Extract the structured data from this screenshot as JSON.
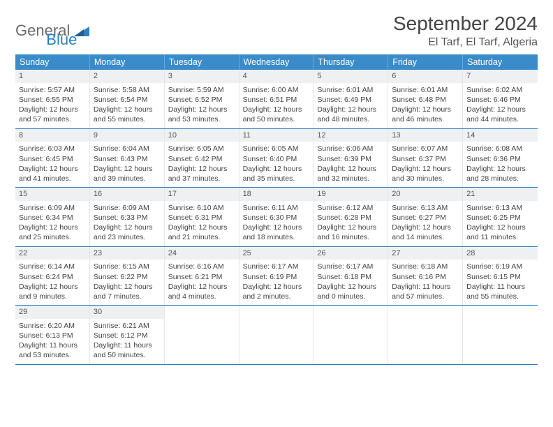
{
  "logo": {
    "part1": "General",
    "part2": "Blue"
  },
  "title": "September 2024",
  "location": "El Tarf, El Tarf, Algeria",
  "colors": {
    "header_bg": "#3a8bc9",
    "header_text": "#ffffff",
    "border": "#2d7fc1",
    "daybar_bg": "#eef0f1",
    "logo_gray": "#6b6b6b",
    "logo_blue": "#2d7fc1"
  },
  "typography": {
    "title_fontsize": 28,
    "location_fontsize": 16,
    "weekday_fontsize": 12.5,
    "body_fontsize": 10.5
  },
  "weekdays": [
    "Sunday",
    "Monday",
    "Tuesday",
    "Wednesday",
    "Thursday",
    "Friday",
    "Saturday"
  ],
  "weeks": [
    [
      {
        "n": "1",
        "sr": "Sunrise: 5:57 AM",
        "ss": "Sunset: 6:55 PM",
        "d1": "Daylight: 12 hours",
        "d2": "and 57 minutes."
      },
      {
        "n": "2",
        "sr": "Sunrise: 5:58 AM",
        "ss": "Sunset: 6:54 PM",
        "d1": "Daylight: 12 hours",
        "d2": "and 55 minutes."
      },
      {
        "n": "3",
        "sr": "Sunrise: 5:59 AM",
        "ss": "Sunset: 6:52 PM",
        "d1": "Daylight: 12 hours",
        "d2": "and 53 minutes."
      },
      {
        "n": "4",
        "sr": "Sunrise: 6:00 AM",
        "ss": "Sunset: 6:51 PM",
        "d1": "Daylight: 12 hours",
        "d2": "and 50 minutes."
      },
      {
        "n": "5",
        "sr": "Sunrise: 6:01 AM",
        "ss": "Sunset: 6:49 PM",
        "d1": "Daylight: 12 hours",
        "d2": "and 48 minutes."
      },
      {
        "n": "6",
        "sr": "Sunrise: 6:01 AM",
        "ss": "Sunset: 6:48 PM",
        "d1": "Daylight: 12 hours",
        "d2": "and 46 minutes."
      },
      {
        "n": "7",
        "sr": "Sunrise: 6:02 AM",
        "ss": "Sunset: 6:46 PM",
        "d1": "Daylight: 12 hours",
        "d2": "and 44 minutes."
      }
    ],
    [
      {
        "n": "8",
        "sr": "Sunrise: 6:03 AM",
        "ss": "Sunset: 6:45 PM",
        "d1": "Daylight: 12 hours",
        "d2": "and 41 minutes."
      },
      {
        "n": "9",
        "sr": "Sunrise: 6:04 AM",
        "ss": "Sunset: 6:43 PM",
        "d1": "Daylight: 12 hours",
        "d2": "and 39 minutes."
      },
      {
        "n": "10",
        "sr": "Sunrise: 6:05 AM",
        "ss": "Sunset: 6:42 PM",
        "d1": "Daylight: 12 hours",
        "d2": "and 37 minutes."
      },
      {
        "n": "11",
        "sr": "Sunrise: 6:05 AM",
        "ss": "Sunset: 6:40 PM",
        "d1": "Daylight: 12 hours",
        "d2": "and 35 minutes."
      },
      {
        "n": "12",
        "sr": "Sunrise: 6:06 AM",
        "ss": "Sunset: 6:39 PM",
        "d1": "Daylight: 12 hours",
        "d2": "and 32 minutes."
      },
      {
        "n": "13",
        "sr": "Sunrise: 6:07 AM",
        "ss": "Sunset: 6:37 PM",
        "d1": "Daylight: 12 hours",
        "d2": "and 30 minutes."
      },
      {
        "n": "14",
        "sr": "Sunrise: 6:08 AM",
        "ss": "Sunset: 6:36 PM",
        "d1": "Daylight: 12 hours",
        "d2": "and 28 minutes."
      }
    ],
    [
      {
        "n": "15",
        "sr": "Sunrise: 6:09 AM",
        "ss": "Sunset: 6:34 PM",
        "d1": "Daylight: 12 hours",
        "d2": "and 25 minutes."
      },
      {
        "n": "16",
        "sr": "Sunrise: 6:09 AM",
        "ss": "Sunset: 6:33 PM",
        "d1": "Daylight: 12 hours",
        "d2": "and 23 minutes."
      },
      {
        "n": "17",
        "sr": "Sunrise: 6:10 AM",
        "ss": "Sunset: 6:31 PM",
        "d1": "Daylight: 12 hours",
        "d2": "and 21 minutes."
      },
      {
        "n": "18",
        "sr": "Sunrise: 6:11 AM",
        "ss": "Sunset: 6:30 PM",
        "d1": "Daylight: 12 hours",
        "d2": "and 18 minutes."
      },
      {
        "n": "19",
        "sr": "Sunrise: 6:12 AM",
        "ss": "Sunset: 6:28 PM",
        "d1": "Daylight: 12 hours",
        "d2": "and 16 minutes."
      },
      {
        "n": "20",
        "sr": "Sunrise: 6:13 AM",
        "ss": "Sunset: 6:27 PM",
        "d1": "Daylight: 12 hours",
        "d2": "and 14 minutes."
      },
      {
        "n": "21",
        "sr": "Sunrise: 6:13 AM",
        "ss": "Sunset: 6:25 PM",
        "d1": "Daylight: 12 hours",
        "d2": "and 11 minutes."
      }
    ],
    [
      {
        "n": "22",
        "sr": "Sunrise: 6:14 AM",
        "ss": "Sunset: 6:24 PM",
        "d1": "Daylight: 12 hours",
        "d2": "and 9 minutes."
      },
      {
        "n": "23",
        "sr": "Sunrise: 6:15 AM",
        "ss": "Sunset: 6:22 PM",
        "d1": "Daylight: 12 hours",
        "d2": "and 7 minutes."
      },
      {
        "n": "24",
        "sr": "Sunrise: 6:16 AM",
        "ss": "Sunset: 6:21 PM",
        "d1": "Daylight: 12 hours",
        "d2": "and 4 minutes."
      },
      {
        "n": "25",
        "sr": "Sunrise: 6:17 AM",
        "ss": "Sunset: 6:19 PM",
        "d1": "Daylight: 12 hours",
        "d2": "and 2 minutes."
      },
      {
        "n": "26",
        "sr": "Sunrise: 6:17 AM",
        "ss": "Sunset: 6:18 PM",
        "d1": "Daylight: 12 hours",
        "d2": "and 0 minutes."
      },
      {
        "n": "27",
        "sr": "Sunrise: 6:18 AM",
        "ss": "Sunset: 6:16 PM",
        "d1": "Daylight: 11 hours",
        "d2": "and 57 minutes."
      },
      {
        "n": "28",
        "sr": "Sunrise: 6:19 AM",
        "ss": "Sunset: 6:15 PM",
        "d1": "Daylight: 11 hours",
        "d2": "and 55 minutes."
      }
    ],
    [
      {
        "n": "29",
        "sr": "Sunrise: 6:20 AM",
        "ss": "Sunset: 6:13 PM",
        "d1": "Daylight: 11 hours",
        "d2": "and 53 minutes."
      },
      {
        "n": "30",
        "sr": "Sunrise: 6:21 AM",
        "ss": "Sunset: 6:12 PM",
        "d1": "Daylight: 11 hours",
        "d2": "and 50 minutes."
      },
      null,
      null,
      null,
      null,
      null
    ]
  ]
}
